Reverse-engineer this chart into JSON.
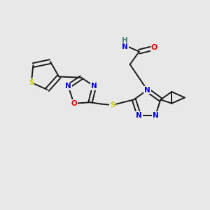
{
  "bg_color": "#e8e8e8",
  "atom_colors": {
    "N": "#0000ee",
    "O": "#ee0000",
    "S": "#cccc00",
    "C": "#000000",
    "H": "#4a8080"
  },
  "bond_color": "#1a1a1a",
  "bond_width": 1.4,
  "fig_width": 3.0,
  "fig_height": 3.0,
  "dpi": 100
}
